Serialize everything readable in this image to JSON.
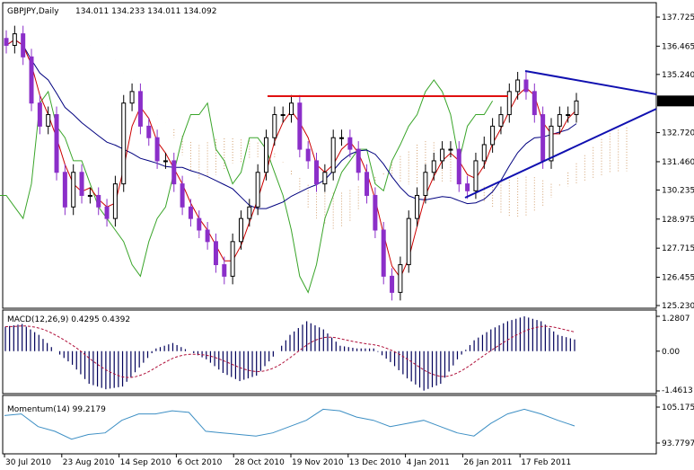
{
  "header": {
    "symbol": "GBPJPY,Daily",
    "ohlc": "134.011 134.233 134.011 134.092"
  },
  "colors": {
    "bull": "#000000",
    "bear": "#8b2fc9",
    "ma_fast": "#cc0000",
    "ma_slow": "#00007f",
    "lagging": "#3aa52a",
    "cloud": "#d2a070",
    "resistance": "#e01010",
    "trendline": "#1010b0",
    "macd_hist": "#00005a",
    "macd_signal": "#b0103a",
    "momentum": "#3d8fc4"
  },
  "chart_data": [
    {
      "type": "candlestick",
      "title": "GBPJPY,Daily",
      "price_ticks": [
        "137.725",
        "136.465",
        "135.240",
        "132.720",
        "131.460",
        "130.235",
        "128.975",
        "127.715",
        "126.455",
        "125.230"
      ],
      "current_price": "134.092",
      "ylim": [
        125.23,
        137.725
      ],
      "date_ticks": [
        "30 Jul 2010",
        "23 Aug 2010",
        "14 Sep 2010",
        "6 Oct 2010",
        "28 Oct 2010",
        "19 Nov 2010",
        "13 Dec 2010",
        "4 Jan 2011",
        "26 Jan 2011",
        "17 Feb 2011"
      ],
      "closes": [
        136.5,
        137,
        136,
        134,
        133,
        133.5,
        131,
        129.5,
        131,
        130,
        130,
        129.5,
        129,
        130.5,
        134,
        134.5,
        133,
        132.5,
        131.5,
        131.5,
        130.5,
        129.5,
        129,
        128.5,
        128,
        127,
        126.5,
        128,
        129,
        129.5,
        131,
        132.5,
        133.5,
        133.5,
        134,
        132,
        131.5,
        130.5,
        131,
        132.5,
        132.5,
        132,
        131,
        130,
        128.5,
        126.5,
        125.8,
        127,
        129,
        130,
        131,
        131.5,
        132,
        132,
        130.5,
        130.2,
        131.5,
        132.2,
        133,
        133.5,
        134.5,
        135,
        134.5,
        133.5,
        131.5,
        133,
        133.5,
        133.5,
        134.092
      ],
      "resistance_level": 134.3,
      "trendlines": [
        {
          "from_price": 135.39,
          "to_price": 134.38
        },
        {
          "from_price": 129.9,
          "to_price": 133.75
        }
      ]
    },
    {
      "type": "bar",
      "title": "MACD(12,26,9) 0.4295 0.4392",
      "ticks": [
        "1.2807",
        "0.00",
        "-1.4613"
      ],
      "ylim": [
        -1.4613,
        1.2807
      ],
      "histogram": [
        0.9,
        1.0,
        0.6,
        0,
        -0.5,
        -1.2,
        -1.4,
        -1.3,
        -0.6,
        0.1,
        0.3,
        0,
        -0.3,
        -0.8,
        -1.1,
        -0.9,
        -0.2,
        0.6,
        1.1,
        0.8,
        0.2,
        0.1,
        0.1,
        -0.4,
        -1.0,
        -1.45,
        -1.2,
        -0.3,
        0.4,
        0.8,
        1.1,
        1.28,
        1.1,
        0.6,
        0.43
      ]
    },
    {
      "type": "line",
      "title": "Momentum(14) 99.2179",
      "ticks": [
        "105.1755",
        "93.7797"
      ],
      "ylim": [
        93.7797,
        105.1755
      ],
      "values": [
        102.5,
        103,
        99,
        97.5,
        95,
        96.5,
        97,
        101,
        103,
        103,
        104,
        103.5,
        97.5,
        97,
        96.5,
        96,
        97,
        99,
        101,
        104.5,
        104,
        102,
        101,
        99,
        100,
        101,
        99,
        97,
        96,
        100,
        103,
        104.5,
        103,
        101,
        99.2
      ]
    }
  ]
}
